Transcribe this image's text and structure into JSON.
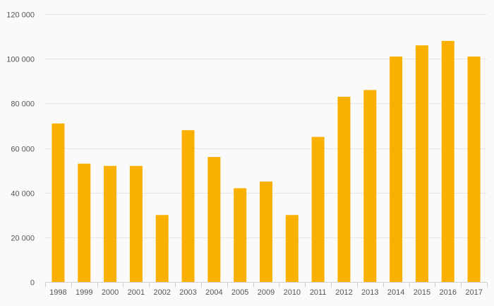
{
  "chart_data": {
    "type": "bar",
    "categories": [
      "1998",
      "1999",
      "2000",
      "2001",
      "2002",
      "2003",
      "2004",
      "2005",
      "2009",
      "2010",
      "2011",
      "2012",
      "2013",
      "2014",
      "2015",
      "2016",
      "2017"
    ],
    "series": [
      {
        "values": [
          71000,
          53000,
          52000,
          52000,
          30000,
          68000,
          56000,
          42000,
          45000,
          30000,
          65000,
          83000,
          86000,
          101000,
          106000,
          108000,
          101000
        ]
      }
    ],
    "ylim": [
      0,
      120000
    ],
    "yticks": [
      0,
      20000,
      40000,
      60000,
      80000,
      100000,
      120000
    ],
    "ytick_labels": [
      "0",
      "20 000",
      "40 000",
      "60 000",
      "80 000",
      "100 000",
      "120 000"
    ],
    "grid": true,
    "legend": "none",
    "colors": {
      "bar": "#f9b000",
      "grid": "#e6e6e6",
      "axis": "#cfcfcf",
      "text": "#555555",
      "background": "#fafafa"
    }
  }
}
